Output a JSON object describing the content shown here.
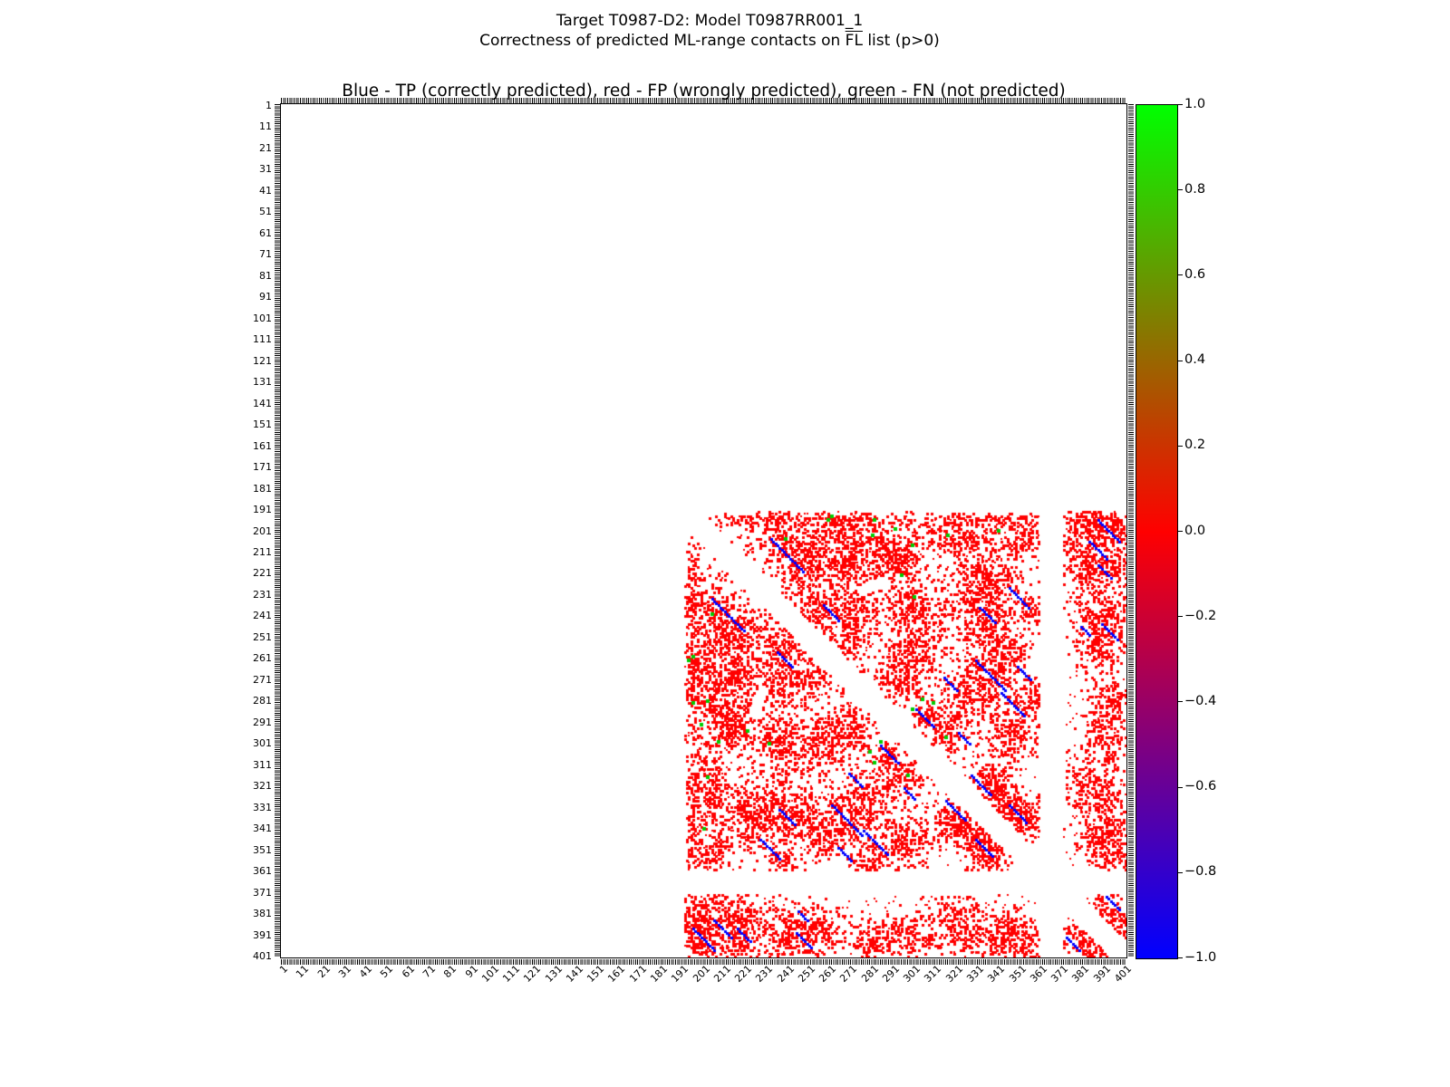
{
  "figure": {
    "suptitle_line1": "Target T0987-D2: Model T0987RR001_1",
    "suptitle_line2_pre": "Correctness of predicted ML-range contacts on ",
    "suptitle_line2_overline": "FL",
    "suptitle_line2_post": " list (p>0)",
    "axes_title": "Blue - TP (correctly predicted), red - FP (wrongly predicted), green - FN (not predicted)"
  },
  "chart_data": {
    "type": "scatter",
    "subtype": "contact-map",
    "title": "Blue - TP (correctly predicted), red - FP (wrongly predicted), green - FN (not predicted)",
    "xlabel": "",
    "ylabel": "",
    "x_range": [
      1,
      401
    ],
    "y_range": [
      1,
      401
    ],
    "y_inverted": true,
    "grid": false,
    "xticks": [
      1,
      11,
      21,
      31,
      41,
      51,
      61,
      71,
      81,
      91,
      101,
      111,
      121,
      131,
      141,
      151,
      161,
      171,
      181,
      191,
      201,
      211,
      221,
      231,
      241,
      251,
      261,
      271,
      281,
      291,
      301,
      311,
      321,
      331,
      341,
      351,
      361,
      371,
      381,
      391,
      401
    ],
    "yticks": [
      1,
      11,
      21,
      31,
      41,
      51,
      61,
      71,
      81,
      91,
      101,
      111,
      121,
      131,
      141,
      151,
      161,
      171,
      181,
      191,
      201,
      211,
      221,
      231,
      241,
      251,
      261,
      271,
      281,
      291,
      301,
      311,
      321,
      331,
      341,
      351,
      361,
      371,
      381,
      391,
      401
    ],
    "legend": {
      "blue": "TP (correctly predicted)",
      "red": "FP (wrongly predicted)",
      "green": "FN (not predicted)"
    },
    "colors": {
      "tp": "#0000ff",
      "fp": "#ff0000",
      "fn": "#00cc00"
    },
    "colorbar": {
      "min": -1.0,
      "max": 1.0,
      "position": "right",
      "stops": [
        {
          "color": "#0000ff",
          "value": -1.0
        },
        {
          "color": "#ff0000",
          "value": 0.0
        },
        {
          "color": "#00ff00",
          "value": 1.0
        }
      ],
      "ticks": [
        {
          "v": 1.0,
          "label": "1.0"
        },
        {
          "v": 0.8,
          "label": "0.8"
        },
        {
          "v": 0.6,
          "label": "0.6"
        },
        {
          "v": 0.4,
          "label": "0.4"
        },
        {
          "v": 0.2,
          "label": "0.2"
        },
        {
          "v": 0.0,
          "label": "0.0"
        },
        {
          "v": -0.2,
          "label": "−0.2"
        },
        {
          "v": -0.4,
          "label": "−0.4"
        },
        {
          "v": -0.6,
          "label": "−0.6"
        },
        {
          "v": -0.8,
          "label": "−0.8"
        },
        {
          "v": -1.0,
          "label": "−1.0"
        }
      ]
    },
    "contact_region": [
      192,
      401
    ],
    "diagonal_exclusion": 8,
    "white_bands": [
      [
        361,
        371
      ]
    ],
    "marker_px": 3,
    "noise_points": 700,
    "seed": 42,
    "fp_clusters": [
      [
        196,
        232,
        2,
        16,
        128
      ],
      [
        196,
        276,
        2,
        14,
        112
      ],
      [
        196,
        330,
        2,
        12,
        96
      ],
      [
        196,
        352,
        2,
        6,
        48
      ],
      [
        196,
        388,
        3,
        12,
        144
      ],
      [
        205,
        240,
        6,
        10,
        240
      ],
      [
        204,
        266,
        5,
        8,
        160
      ],
      [
        208,
        287,
        6,
        9,
        216
      ],
      [
        204,
        323,
        5,
        9,
        180
      ],
      [
        206,
        352,
        4,
        6,
        96
      ],
      [
        205,
        388,
        7,
        11,
        308
      ],
      [
        218,
        248,
        6,
        8,
        192
      ],
      [
        219,
        268,
        5,
        6,
        120
      ],
      [
        217,
        292,
        5,
        7,
        140
      ],
      [
        221,
        335,
        7,
        9,
        252
      ],
      [
        219,
        388,
        6,
        9,
        216
      ],
      [
        237,
        252,
        6,
        7,
        168
      ],
      [
        239,
        272,
        6,
        8,
        192
      ],
      [
        236,
        300,
        6,
        8,
        192
      ],
      [
        240,
        332,
        8,
        9,
        288
      ],
      [
        238,
        358,
        4,
        5,
        80
      ],
      [
        241,
        390,
        7,
        8,
        224
      ],
      [
        253,
        270,
        5,
        5,
        100
      ],
      [
        256,
        300,
        7,
        8,
        224
      ],
      [
        259,
        340,
        8,
        8,
        256
      ],
      [
        256,
        390,
        6,
        7,
        168
      ],
      [
        272,
        294,
        6,
        7,
        168
      ],
      [
        276,
        330,
        7,
        8,
        224
      ],
      [
        279,
        358,
        5,
        5,
        100
      ],
      [
        281,
        394,
        6,
        6,
        144
      ],
      [
        294,
        318,
        6,
        6,
        144
      ],
      [
        296,
        348,
        7,
        7,
        196
      ],
      [
        299,
        390,
        6,
        6,
        144
      ],
      [
        288,
        308,
        4,
        4,
        64
      ],
      [
        318,
        338,
        6,
        6,
        144
      ],
      [
        321,
        386,
        7,
        8,
        224
      ],
      [
        339,
        355,
        5,
        5,
        100
      ],
      [
        341,
        390,
        7,
        7,
        196
      ],
      [
        333,
        348,
        5,
        5,
        100
      ],
      [
        352,
        394,
        5,
        6,
        120
      ],
      [
        326,
        342,
        5,
        5,
        100
      ],
      [
        381,
        394,
        6,
        5,
        120
      ],
      [
        390,
        399,
        4,
        3,
        48
      ]
    ],
    "tp_segments": [
      [
        205,
        233,
        16
      ],
      [
        236,
        258,
        8
      ],
      [
        262,
        330,
        15
      ],
      [
        277,
        342,
        12
      ],
      [
        285,
        302,
        9
      ],
      [
        316,
        328,
        10
      ],
      [
        330,
        346,
        9
      ],
      [
        228,
        346,
        10
      ],
      [
        270,
        315,
        7
      ],
      [
        196,
        388,
        11
      ],
      [
        217,
        388,
        7
      ],
      [
        237,
        332,
        8
      ],
      [
        246,
        380,
        5
      ],
      [
        373,
        392,
        7
      ],
      [
        206,
        384,
        9
      ],
      [
        296,
        322,
        6
      ],
      [
        265,
        350,
        7
      ],
      [
        245,
        390,
        8
      ]
    ],
    "fn_points": [
      [
        196,
        282
      ],
      [
        203,
        317
      ],
      [
        222,
        295
      ],
      [
        232,
        301
      ],
      [
        205,
        240
      ],
      [
        194,
        262
      ],
      [
        203,
        281
      ],
      [
        285,
        300
      ],
      [
        200,
        292
      ],
      [
        208,
        300
      ],
      [
        280,
        305
      ],
      [
        298,
        316
      ],
      [
        201,
        341
      ],
      [
        196,
        260
      ],
      [
        282,
        310
      ]
    ]
  }
}
